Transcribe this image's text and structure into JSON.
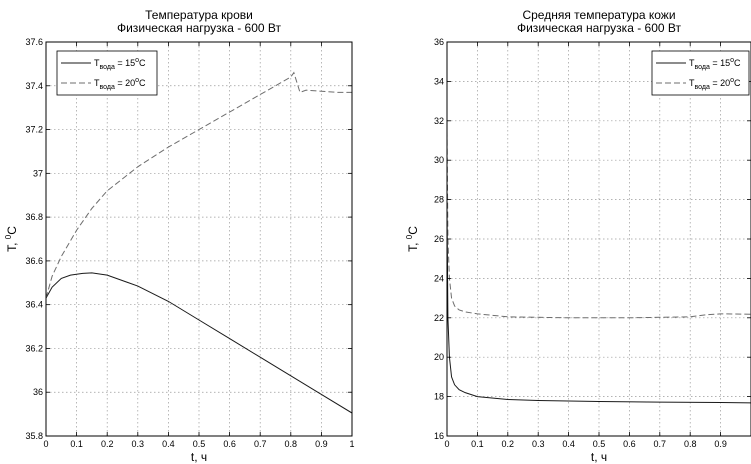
{
  "chart_data": [
    {
      "type": "line",
      "title": [
        "Температура крови",
        "Физическая нагрузка - 600 Вт"
      ],
      "xlabel": "t, ч",
      "ylabel": "T, ",
      "ylabel_sup": "0",
      "ylabel_unit": "C",
      "xlim": [
        0,
        1
      ],
      "ylim": [
        35.8,
        37.6
      ],
      "xticks": [
        0,
        0.1,
        0.2,
        0.3,
        0.4,
        0.5,
        0.6,
        0.7,
        0.8,
        0.9,
        1
      ],
      "xtick_labels": [
        "0",
        "0.1",
        "0.2",
        "0.3",
        "0.4",
        "0.5",
        "0.6",
        "0.7",
        "0.8",
        "0.9",
        "1"
      ],
      "yticks": [
        35.8,
        36,
        36.2,
        36.4,
        36.6,
        36.8,
        37,
        37.2,
        37.4,
        37.6
      ],
      "ytick_labels": [
        "35.8",
        "36",
        "36.2",
        "36.4",
        "36.6",
        "36.8",
        "37",
        "37.2",
        "37.4",
        "37.6"
      ],
      "grid": true,
      "legend_position": "top-left",
      "series": [
        {
          "name": "T вода = 15°C",
          "legend": {
            "pre": "T",
            "sub": "вода",
            "mid": " = 15",
            "sup": "o",
            "post": "C"
          },
          "style": "solid",
          "x": [
            0,
            0.02,
            0.05,
            0.08,
            0.12,
            0.15,
            0.2,
            0.3,
            0.4,
            0.5,
            0.6,
            0.7,
            0.8,
            0.9,
            1.0
          ],
          "y": [
            36.43,
            36.48,
            36.52,
            36.535,
            36.543,
            36.545,
            36.535,
            36.485,
            36.415,
            36.33,
            36.245,
            36.16,
            36.075,
            35.99,
            35.905
          ]
        },
        {
          "name": "T вода = 20°C",
          "legend": {
            "pre": "T",
            "sub": "вода",
            "mid": " = 20",
            "sup": "o",
            "post": "C"
          },
          "style": "dashed",
          "x": [
            0,
            0.02,
            0.05,
            0.1,
            0.15,
            0.2,
            0.3,
            0.4,
            0.5,
            0.6,
            0.7,
            0.8,
            0.81,
            0.83,
            0.85,
            0.9,
            0.95,
            1.0
          ],
          "y": [
            36.43,
            36.53,
            36.62,
            36.74,
            36.84,
            36.92,
            37.03,
            37.12,
            37.2,
            37.28,
            37.36,
            37.44,
            37.46,
            37.37,
            37.38,
            37.375,
            37.37,
            37.37
          ]
        }
      ]
    },
    {
      "type": "line",
      "title": [
        "Средняя температура кожи",
        "Физическая нагрузка - 600 Вт"
      ],
      "xlabel": "t, ч",
      "ylabel": "T, ",
      "ylabel_sup": "0",
      "ylabel_unit": "C",
      "xlim": [
        0,
        1
      ],
      "ylim": [
        16,
        36
      ],
      "xticks": [
        0,
        0.1,
        0.2,
        0.3,
        0.4,
        0.5,
        0.6,
        0.7,
        0.8,
        0.9
      ],
      "xtick_labels": [
        "0",
        "0.1",
        "0.2",
        "0.3",
        "0.4",
        "0.5",
        "0.6",
        "0.7",
        "0.8",
        "0.9"
      ],
      "yticks": [
        16,
        18,
        20,
        22,
        24,
        26,
        28,
        30,
        32,
        34,
        36
      ],
      "ytick_labels": [
        "16",
        "18",
        "20",
        "22",
        "24",
        "26",
        "28",
        "30",
        "32",
        "34",
        "36"
      ],
      "grid": true,
      "legend_position": "top-right",
      "series": [
        {
          "name": "T вода = 15°C",
          "legend": {
            "pre": "T",
            "sub": "вода",
            "mid": " = 15",
            "sup": "o",
            "post": "C"
          },
          "style": "solid",
          "x": [
            0,
            0.003,
            0.008,
            0.015,
            0.025,
            0.04,
            0.06,
            0.1,
            0.2,
            0.3,
            0.5,
            0.7,
            0.9,
            1.0
          ],
          "y": [
            27.5,
            22.0,
            20.0,
            19.0,
            18.6,
            18.35,
            18.2,
            18.0,
            17.85,
            17.8,
            17.75,
            17.72,
            17.7,
            17.68
          ]
        },
        {
          "name": "T вода = 20°C",
          "legend": {
            "pre": "T",
            "sub": "вода",
            "mid": " = 20",
            "sup": "o",
            "post": "C"
          },
          "style": "dashed",
          "x": [
            0,
            0.003,
            0.008,
            0.015,
            0.025,
            0.04,
            0.06,
            0.1,
            0.2,
            0.4,
            0.6,
            0.8,
            0.85,
            0.9,
            1.0
          ],
          "y": [
            31.5,
            26.0,
            24.0,
            23.0,
            22.6,
            22.4,
            22.3,
            22.2,
            22.05,
            22.0,
            22.0,
            22.05,
            22.15,
            22.2,
            22.18
          ]
        }
      ]
    }
  ]
}
